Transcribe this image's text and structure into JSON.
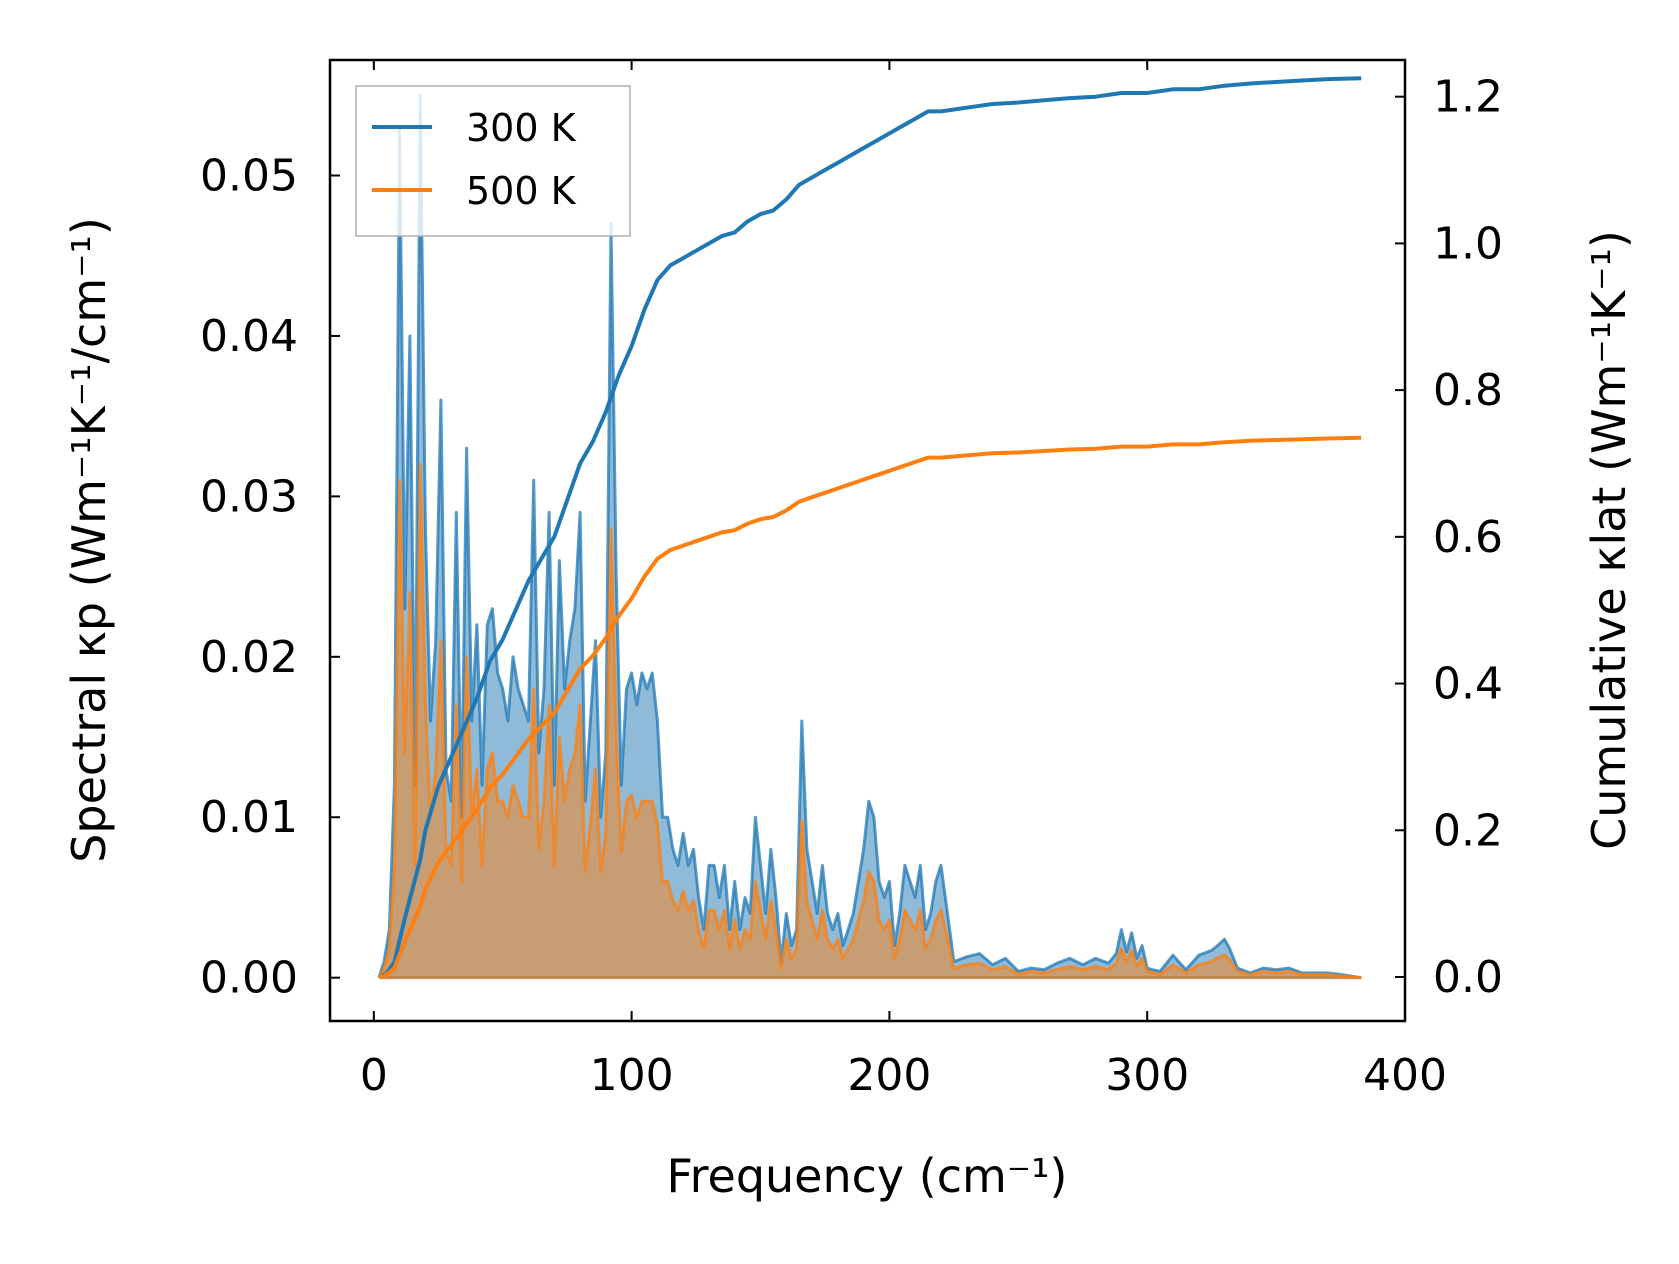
{
  "chart_data": {
    "type": "line",
    "xlabel": "Frequency (cm⁻¹)",
    "ylabel_left": "Spectral κp (Wm⁻¹K⁻¹/cm⁻¹)",
    "ylabel_right": "Cumulative κlat (Wm⁻¹K⁻¹)",
    "xlim": [
      -17,
      400
    ],
    "ylim_left": [
      -0.0027,
      0.0572
    ],
    "ylim_right": [
      -0.06,
      1.25
    ],
    "xticks": [
      0,
      100,
      200,
      300,
      400
    ],
    "xtick_labels": [
      "0",
      "100",
      "200",
      "300",
      "400"
    ],
    "yticks_left": [
      0,
      0.01,
      0.02,
      0.03,
      0.04,
      0.05
    ],
    "ytick_labels_left": [
      "0.00",
      "0.01",
      "0.02",
      "0.03",
      "0.04",
      "0.05"
    ],
    "yticks_right": [
      0,
      0.2,
      0.4,
      0.6,
      0.8,
      1.0,
      1.2
    ],
    "ytick_labels_right": [
      "0.0",
      "0.2",
      "0.4",
      "0.6",
      "0.8",
      "1.0",
      "1.2"
    ],
    "legend_position": "top-left",
    "series": [
      {
        "name": "300 K",
        "color": "#1f77b4",
        "spectral": {
          "x": [
            2,
            4,
            6,
            8,
            10,
            12,
            14,
            16,
            18,
            20,
            22,
            24,
            26,
            28,
            30,
            32,
            34,
            36,
            38,
            40,
            42,
            44,
            46,
            48,
            50,
            52,
            54,
            56,
            58,
            60,
            62,
            64,
            66,
            68,
            70,
            72,
            74,
            76,
            78,
            80,
            82,
            84,
            86,
            88,
            90,
            92,
            94,
            96,
            98,
            100,
            102,
            104,
            106,
            108,
            110,
            112,
            114,
            116,
            118,
            120,
            122,
            124,
            126,
            128,
            130,
            132,
            134,
            136,
            138,
            140,
            142,
            144,
            146,
            148,
            150,
            152,
            154,
            156,
            158,
            160,
            162,
            164,
            166,
            168,
            170,
            172,
            174,
            176,
            178,
            180,
            182,
            184,
            186,
            188,
            190,
            192,
            194,
            196,
            198,
            200,
            202,
            204,
            206,
            208,
            210,
            212,
            214,
            216,
            218,
            220,
            225,
            230,
            235,
            240,
            245,
            250,
            255,
            260,
            265,
            270,
            275,
            280,
            285,
            288,
            290,
            292,
            294,
            296,
            298,
            300,
            302,
            305,
            310,
            315,
            320,
            325,
            328,
            330,
            332,
            335,
            340,
            345,
            350,
            355,
            360,
            365,
            370,
            375,
            383
          ],
          "y": [
            0,
            0.001,
            0.003,
            0.012,
            0.053,
            0.023,
            0.04,
            0.012,
            0.055,
            0.028,
            0.016,
            0.021,
            0.036,
            0.013,
            0.011,
            0.029,
            0.01,
            0.033,
            0.016,
            0.022,
            0.012,
            0.022,
            0.023,
            0.019,
            0.018,
            0.016,
            0.02,
            0.018,
            0.017,
            0.016,
            0.031,
            0.014,
            0.018,
            0.029,
            0.012,
            0.026,
            0.018,
            0.021,
            0.023,
            0.029,
            0.011,
            0.016,
            0.021,
            0.01,
            0.014,
            0.047,
            0.025,
            0.012,
            0.018,
            0.019,
            0.017,
            0.019,
            0.018,
            0.019,
            0.016,
            0.01,
            0.01,
            0.008,
            0.007,
            0.009,
            0.007,
            0.008,
            0.005,
            0.003,
            0.007,
            0.007,
            0.005,
            0.007,
            0.003,
            0.006,
            0.003,
            0.005,
            0.004,
            0.01,
            0.007,
            0.004,
            0.008,
            0.005,
            0.001,
            0.004,
            0.002,
            0.003,
            0.016,
            0.008,
            0.006,
            0.004,
            0.007,
            0.004,
            0.003,
            0.004,
            0.002,
            0.003,
            0.004,
            0.006,
            0.008,
            0.011,
            0.01,
            0.006,
            0.005,
            0.006,
            0.002,
            0.004,
            0.007,
            0.006,
            0.005,
            0.007,
            0.003,
            0.004,
            0.006,
            0.007,
            0.001,
            0.0013,
            0.0015,
            0.0008,
            0.0012,
            0.0004,
            0.0006,
            0.0005,
            0.0009,
            0.0012,
            0.0008,
            0.0012,
            0.0009,
            0.0015,
            0.003,
            0.0016,
            0.0028,
            0.0012,
            0.002,
            0.0006,
            0.0005,
            0.0004,
            0.0014,
            0.0005,
            0.0014,
            0.0017,
            0.0021,
            0.0024,
            0.0018,
            0.0006,
            0.0003,
            0.0006,
            0.0005,
            0.0006,
            0.0003,
            0.0003,
            0.0003,
            0.0002,
            0
          ]
        },
        "cumulative": {
          "x": [
            2,
            5,
            8,
            10,
            12,
            15,
            18,
            20,
            25,
            30,
            35,
            40,
            45,
            50,
            55,
            60,
            65,
            70,
            75,
            80,
            85,
            90,
            95,
            100,
            105,
            110,
            115,
            120,
            125,
            130,
            135,
            140,
            145,
            150,
            155,
            160,
            165,
            170,
            175,
            180,
            185,
            190,
            195,
            200,
            205,
            210,
            215,
            220,
            230,
            240,
            250,
            260,
            270,
            280,
            290,
            295,
            300,
            310,
            320,
            330,
            340,
            350,
            360,
            370,
            383
          ],
          "y": [
            0,
            0.005,
            0.02,
            0.05,
            0.08,
            0.12,
            0.16,
            0.2,
            0.26,
            0.3,
            0.34,
            0.38,
            0.43,
            0.46,
            0.5,
            0.54,
            0.57,
            0.6,
            0.65,
            0.7,
            0.73,
            0.77,
            0.82,
            0.86,
            0.91,
            0.95,
            0.97,
            0.98,
            0.99,
            1.0,
            1.01,
            1.015,
            1.03,
            1.04,
            1.045,
            1.06,
            1.08,
            1.09,
            1.1,
            1.11,
            1.12,
            1.13,
            1.14,
            1.15,
            1.16,
            1.17,
            1.18,
            1.18,
            1.185,
            1.19,
            1.192,
            1.195,
            1.198,
            1.2,
            1.205,
            1.205,
            1.205,
            1.21,
            1.21,
            1.215,
            1.218,
            1.22,
            1.222,
            1.224,
            1.225
          ]
        }
      },
      {
        "name": "500 K",
        "color": "#ff7f0e",
        "spectral": {
          "x": [
            2,
            4,
            6,
            8,
            10,
            12,
            14,
            16,
            18,
            20,
            22,
            24,
            26,
            28,
            30,
            32,
            34,
            36,
            38,
            40,
            42,
            44,
            46,
            48,
            50,
            52,
            54,
            56,
            58,
            60,
            62,
            64,
            66,
            68,
            70,
            72,
            74,
            76,
            78,
            80,
            82,
            84,
            86,
            88,
            90,
            92,
            94,
            96,
            98,
            100,
            102,
            104,
            106,
            108,
            110,
            112,
            114,
            116,
            118,
            120,
            122,
            124,
            126,
            128,
            130,
            132,
            134,
            136,
            138,
            140,
            142,
            144,
            146,
            148,
            150,
            152,
            154,
            156,
            158,
            160,
            162,
            164,
            166,
            168,
            170,
            172,
            174,
            176,
            178,
            180,
            182,
            184,
            186,
            188,
            190,
            192,
            194,
            196,
            198,
            200,
            202,
            204,
            206,
            208,
            210,
            212,
            214,
            216,
            218,
            220,
            225,
            230,
            235,
            240,
            245,
            250,
            255,
            260,
            265,
            270,
            275,
            280,
            285,
            288,
            290,
            292,
            294,
            296,
            298,
            300,
            302,
            305,
            310,
            315,
            320,
            325,
            328,
            330,
            332,
            335,
            340,
            345,
            350,
            355,
            360,
            365,
            370,
            375,
            383
          ],
          "y": [
            0,
            0.0006,
            0.0018,
            0.007,
            0.031,
            0.014,
            0.024,
            0.007,
            0.032,
            0.017,
            0.01,
            0.013,
            0.021,
            0.008,
            0.007,
            0.017,
            0.006,
            0.02,
            0.01,
            0.013,
            0.007,
            0.013,
            0.014,
            0.011,
            0.011,
            0.01,
            0.012,
            0.011,
            0.01,
            0.01,
            0.018,
            0.008,
            0.011,
            0.017,
            0.007,
            0.015,
            0.011,
            0.013,
            0.014,
            0.017,
            0.0066,
            0.0096,
            0.013,
            0.0066,
            0.009,
            0.028,
            0.015,
            0.0078,
            0.011,
            0.0114,
            0.01,
            0.011,
            0.011,
            0.011,
            0.0096,
            0.006,
            0.006,
            0.0048,
            0.0042,
            0.0054,
            0.0042,
            0.0048,
            0.003,
            0.0018,
            0.0042,
            0.0042,
            0.003,
            0.0042,
            0.0018,
            0.0036,
            0.0018,
            0.003,
            0.0024,
            0.006,
            0.0042,
            0.0024,
            0.0048,
            0.003,
            0.0006,
            0.0024,
            0.0012,
            0.0018,
            0.0098,
            0.0048,
            0.0036,
            0.0024,
            0.0042,
            0.0024,
            0.0018,
            0.0024,
            0.0012,
            0.0018,
            0.0024,
            0.0036,
            0.0048,
            0.0066,
            0.006,
            0.0036,
            0.003,
            0.0036,
            0.0012,
            0.0024,
            0.0042,
            0.0036,
            0.003,
            0.0042,
            0.0018,
            0.0024,
            0.0036,
            0.0042,
            0.0006,
            0.0008,
            0.0009,
            0.0005,
            0.0007,
            0.0002,
            0.0004,
            0.0003,
            0.0005,
            0.0007,
            0.0005,
            0.0007,
            0.0005,
            0.0009,
            0.0018,
            0.001,
            0.0017,
            0.0007,
            0.0012,
            0.0004,
            0.0003,
            0.0002,
            0.0008,
            0.0003,
            0.0008,
            0.001,
            0.0013,
            0.0014,
            0.0011,
            0.0004,
            0.0002,
            0.0004,
            0.0003,
            0.0004,
            0.0002,
            0.0002,
            0.0002,
            0.0001,
            0
          ]
        },
        "cumulative": {
          "x": [
            2,
            5,
            8,
            10,
            12,
            15,
            18,
            20,
            25,
            30,
            35,
            40,
            45,
            50,
            55,
            60,
            65,
            70,
            75,
            80,
            85,
            90,
            95,
            100,
            105,
            110,
            115,
            120,
            125,
            130,
            135,
            140,
            145,
            150,
            155,
            160,
            165,
            170,
            175,
            180,
            185,
            190,
            195,
            200,
            205,
            210,
            215,
            220,
            230,
            240,
            250,
            260,
            270,
            280,
            290,
            295,
            300,
            310,
            320,
            330,
            340,
            350,
            360,
            370,
            383
          ],
          "y": [
            0,
            0.003,
            0.012,
            0.03,
            0.048,
            0.072,
            0.096,
            0.12,
            0.156,
            0.18,
            0.204,
            0.228,
            0.258,
            0.276,
            0.3,
            0.324,
            0.342,
            0.36,
            0.39,
            0.42,
            0.438,
            0.462,
            0.492,
            0.516,
            0.546,
            0.57,
            0.582,
            0.588,
            0.594,
            0.6,
            0.606,
            0.609,
            0.618,
            0.624,
            0.627,
            0.636,
            0.648,
            0.654,
            0.66,
            0.666,
            0.672,
            0.678,
            0.684,
            0.69,
            0.696,
            0.702,
            0.708,
            0.708,
            0.711,
            0.714,
            0.715,
            0.717,
            0.719,
            0.72,
            0.723,
            0.723,
            0.723,
            0.726,
            0.726,
            0.729,
            0.731,
            0.732,
            0.733,
            0.734,
            0.735
          ]
        }
      }
    ]
  }
}
